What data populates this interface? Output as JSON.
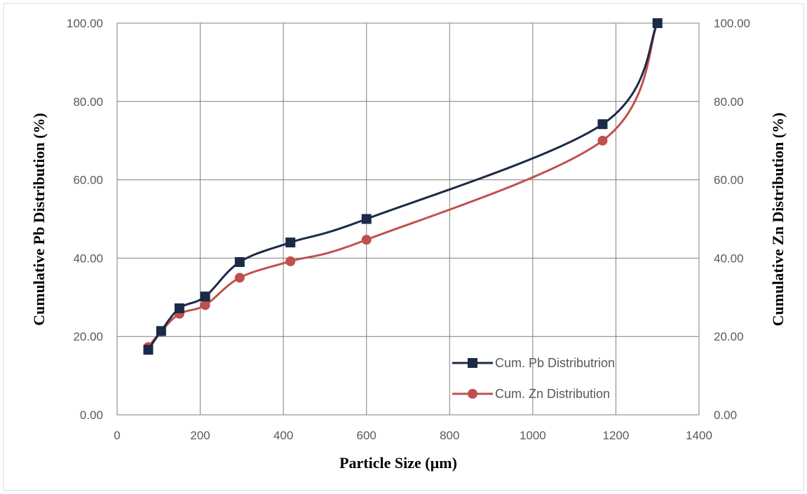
{
  "chart_data": {
    "type": "line",
    "xlabel": "Particle Size (µm)",
    "ylabel": "Cumulative Pb Distribution (%)",
    "y2label": "Cumulative Zn Distribution (%)",
    "xlim": [
      0,
      1400
    ],
    "ylim": [
      0,
      100
    ],
    "y2lim": [
      0,
      100
    ],
    "x_ticks": [
      "0",
      "200",
      "400",
      "600",
      "800",
      "1000",
      "1200",
      "1400"
    ],
    "y_ticks": [
      "0.00",
      "20.00",
      "40.00",
      "60.00",
      "80.00",
      "100.00"
    ],
    "y2_ticks": [
      "0.00",
      "20.00",
      "40.00",
      "60.00",
      "80.00",
      "100.00"
    ],
    "grid": true,
    "legend_position": "bottom-right",
    "smooth": true,
    "series": [
      {
        "name": "Cum. Pb Distributrion",
        "color": "#1b2a47",
        "marker": "square",
        "axis": "left",
        "x": [
          75,
          106,
          150,
          212,
          295,
          417,
          600,
          1168,
          1300
        ],
        "values": [
          16.6,
          21.4,
          27.2,
          30.2,
          39.0,
          44.0,
          50.0,
          74.2,
          100.0
        ]
      },
      {
        "name": "Cum. Zn Distribution",
        "color": "#c0504d",
        "marker": "circle",
        "axis": "right",
        "x": [
          75,
          106,
          150,
          212,
          295,
          417,
          600,
          1168,
          1300
        ],
        "values": [
          17.3,
          21.3,
          25.8,
          28.0,
          35.0,
          39.2,
          44.7,
          70.0,
          100.0
        ]
      }
    ]
  }
}
